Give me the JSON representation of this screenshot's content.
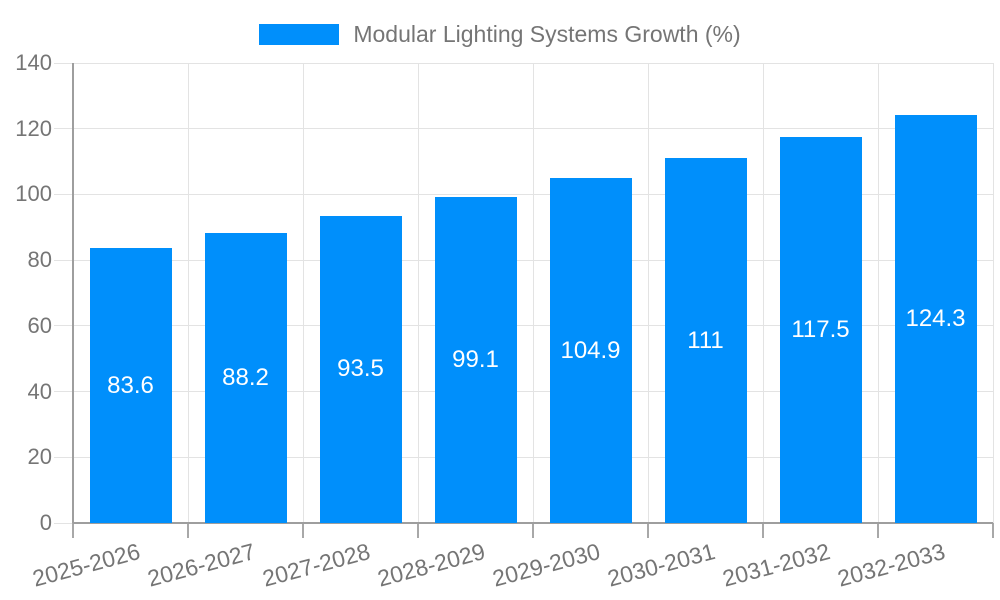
{
  "legend": {
    "label": "Modular Lighting Systems Growth (%)"
  },
  "chart_data": {
    "type": "bar",
    "title": "",
    "categories": [
      "2025-2026",
      "2026-2027",
      "2027-2028",
      "2028-2029",
      "2029-2030",
      "2030-2031",
      "2031-2032",
      "2032-2033"
    ],
    "series": [
      {
        "name": "Modular Lighting Systems Growth (%)",
        "values": [
          83.6,
          88.2,
          93.5,
          99.1,
          104.9,
          111,
          117.5,
          124.3
        ],
        "labels": [
          "83.6",
          "88.2",
          "93.5",
          "99.1",
          "104.9",
          "111",
          "117.5",
          "124.3"
        ]
      }
    ],
    "xlabel": "",
    "ylabel": "",
    "ylim": [
      0,
      140
    ],
    "yticks": [
      0,
      20,
      40,
      60,
      80,
      100,
      120,
      140
    ],
    "grid": true,
    "legend_position": "top",
    "value_labels_position": "inside-center",
    "colors": {
      "bar": "#008FFB",
      "grid": "#e3e3e3",
      "axis": "#9e9e9e",
      "tick_text": "#757575",
      "value_label": "#ffffff",
      "background": "#ffffff"
    }
  }
}
